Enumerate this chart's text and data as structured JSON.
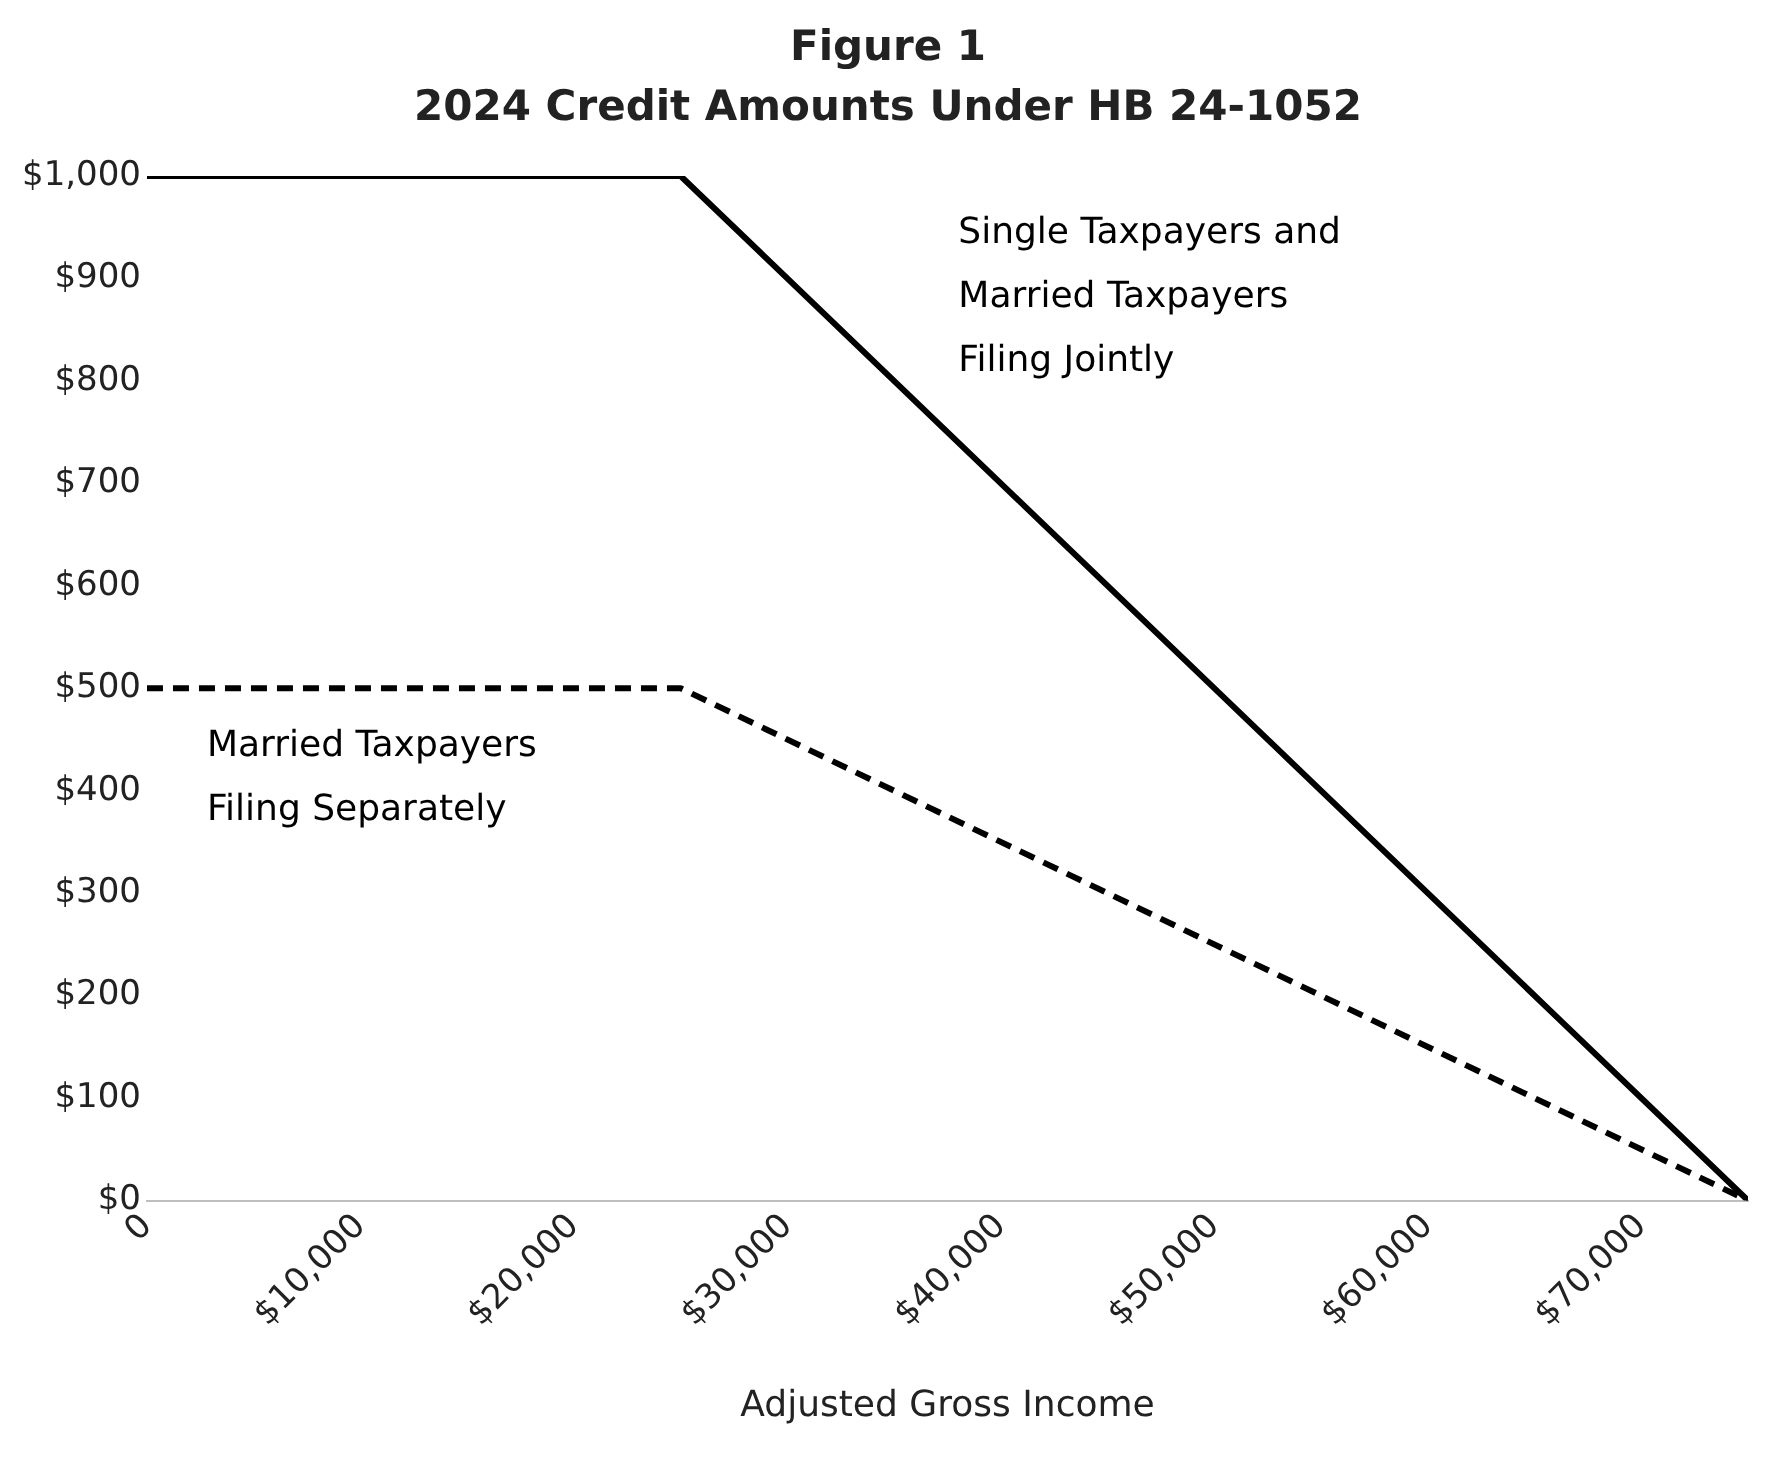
{
  "chart_data": {
    "type": "line",
    "title": "Figure 1",
    "subtitle": "2024 Credit Amounts Under HB 24-1052",
    "xlabel": "Adjusted Gross Income",
    "x": [
      0,
      25000,
      75000
    ],
    "series": [
      {
        "name": "Single Taxpayers and Married Taxpayers Filing Jointly",
        "color": "#000000",
        "line_style": "solid",
        "values": [
          1000,
          1000,
          0
        ]
      },
      {
        "name": "Married Taxpayers Filing Separately",
        "color": "#000000",
        "line_style": "dashed",
        "values": [
          500,
          500,
          0
        ]
      }
    ],
    "xlim": [
      0,
      75000
    ],
    "xticks": [
      {
        "value": 0,
        "label": "0"
      },
      {
        "value": 10000,
        "label": "$10,000"
      },
      {
        "value": 20000,
        "label": "$20,000"
      },
      {
        "value": 30000,
        "label": "$30,000"
      },
      {
        "value": 40000,
        "label": "$40,000"
      },
      {
        "value": 50000,
        "label": "$50,000"
      },
      {
        "value": 60000,
        "label": "$60,000"
      },
      {
        "value": 70000,
        "label": "$70,000"
      }
    ],
    "ylim": [
      0,
      1000
    ],
    "yticks": [
      {
        "value": 0,
        "label": "$0"
      },
      {
        "value": 100,
        "label": "$100"
      },
      {
        "value": 200,
        "label": "$200"
      },
      {
        "value": 300,
        "label": "$300"
      },
      {
        "value": 400,
        "label": "$400"
      },
      {
        "value": 500,
        "label": "$500"
      },
      {
        "value": 600,
        "label": "$600"
      },
      {
        "value": 700,
        "label": "$700"
      },
      {
        "value": 800,
        "label": "$800"
      },
      {
        "value": 900,
        "label": "$900"
      },
      {
        "value": 1000,
        "label": "$1,000"
      }
    ],
    "grid": false,
    "legend": false,
    "marker": "none"
  }
}
